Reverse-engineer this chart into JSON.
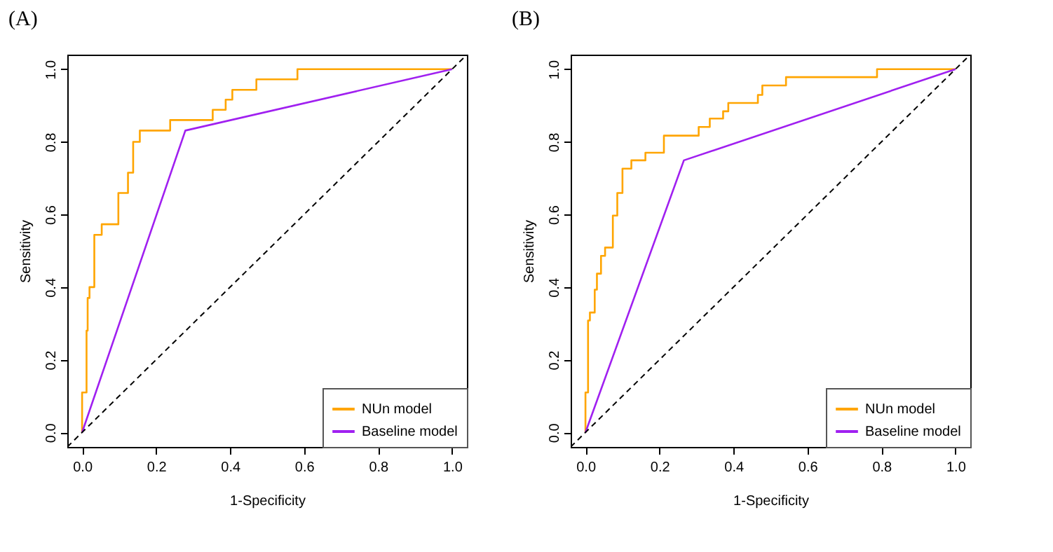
{
  "chart_data": [
    {
      "type": "line",
      "title": "(A)",
      "xlabel": "1-Specificity",
      "ylabel": "Sensitivity",
      "xlim": [
        -0.04,
        1.04
      ],
      "ylim": [
        -0.04,
        1.04
      ],
      "xticks": [
        {
          "value": 0,
          "label": "0.0"
        },
        {
          "value": 0.2,
          "label": "0.2"
        },
        {
          "value": 0.4,
          "label": "0.4"
        },
        {
          "value": 0.6,
          "label": "0.6"
        },
        {
          "value": 0.8,
          "label": "0.8"
        },
        {
          "value": 1,
          "label": "1.0"
        }
      ],
      "yticks": [
        {
          "value": 0,
          "label": "0.0"
        },
        {
          "value": 0.2,
          "label": "0.2"
        },
        {
          "value": 0.4,
          "label": "0.4"
        },
        {
          "value": 0.6,
          "label": "0.6"
        },
        {
          "value": 0.8,
          "label": "0.8"
        },
        {
          "value": 1,
          "label": "1.0"
        }
      ],
      "grid": false,
      "legend": "bottom right",
      "marker": "none",
      "series": [
        {
          "name": "NUn model",
          "color": "#ffa500",
          "x": [
            0,
            0,
            0.012,
            0.012,
            0.012,
            0.015,
            0.015,
            0.02,
            0.02,
            0.033,
            0.033,
            0.033,
            0.039,
            0.053,
            0.053,
            0.098,
            0.098,
            0.098,
            0.124,
            0.124,
            0.138,
            0.138,
            0.156,
            0.156,
            0.238,
            0.238,
            0.353,
            0.353,
            0.388,
            0.388,
            0.406,
            0.406,
            0.471,
            0.471,
            0.582,
            0.582,
            1
          ],
          "values": [
            0,
            0.11,
            0.11,
            0.2,
            0.28,
            0.28,
            0.37,
            0.37,
            0.4,
            0.4,
            0.485,
            0.544,
            0.544,
            0.544,
            0.573,
            0.573,
            0.628,
            0.659,
            0.659,
            0.715,
            0.715,
            0.8,
            0.8,
            0.831,
            0.831,
            0.86,
            0.86,
            0.888,
            0.888,
            0.916,
            0.916,
            0.943,
            0.943,
            0.972,
            0.972,
            1,
            1
          ]
        },
        {
          "name": "Baseline model",
          "color": "#a020f0",
          "x": [
            0,
            0.279,
            1
          ],
          "values": [
            0,
            0.831,
            1
          ]
        },
        {
          "color": "#000000",
          "line_style": "dashed",
          "x": [
            -0.04,
            1.04
          ],
          "values": [
            -0.04,
            1.04
          ]
        }
      ]
    },
    {
      "type": "line",
      "title": "(B)",
      "xlabel": "1-Specificity",
      "ylabel": "Sensitivity",
      "xlim": [
        -0.04,
        1.04
      ],
      "ylim": [
        -0.04,
        1.04
      ],
      "xticks": [
        {
          "value": 0,
          "label": "0.0"
        },
        {
          "value": 0.2,
          "label": "0.2"
        },
        {
          "value": 0.4,
          "label": "0.4"
        },
        {
          "value": 0.6,
          "label": "0.6"
        },
        {
          "value": 0.8,
          "label": "0.8"
        },
        {
          "value": 1,
          "label": "1.0"
        }
      ],
      "yticks": [
        {
          "value": 0,
          "label": "0.0"
        },
        {
          "value": 0.2,
          "label": "0.2"
        },
        {
          "value": 0.4,
          "label": "0.4"
        },
        {
          "value": 0.6,
          "label": "0.6"
        },
        {
          "value": 0.8,
          "label": "0.8"
        },
        {
          "value": 1,
          "label": "1.0"
        }
      ],
      "grid": false,
      "legend": "bottom right",
      "marker": "none",
      "series": [
        {
          "name": "NUn model",
          "color": "#ffa500",
          "x": [
            0,
            0,
            0.007,
            0.007,
            0.012,
            0.012,
            0.025,
            0.025,
            0.031,
            0.031,
            0.042,
            0.042,
            0.053,
            0.053,
            0.074,
            0.074,
            0.086,
            0.086,
            0.1,
            0.1,
            0.124,
            0.124,
            0.162,
            0.162,
            0.212,
            0.212,
            0.306,
            0.306,
            0.336,
            0.336,
            0.372,
            0.372,
            0.386,
            0.386,
            0.466,
            0.466,
            0.478,
            0.478,
            0.542,
            0.542,
            0.788,
            0.788,
            1
          ],
          "values": [
            0,
            0.11,
            0.11,
            0.308,
            0.308,
            0.33,
            0.33,
            0.393,
            0.393,
            0.437,
            0.437,
            0.486,
            0.486,
            0.509,
            0.509,
            0.597,
            0.597,
            0.659,
            0.659,
            0.726,
            0.726,
            0.749,
            0.749,
            0.77,
            0.77,
            0.817,
            0.817,
            0.841,
            0.841,
            0.864,
            0.864,
            0.884,
            0.884,
            0.907,
            0.907,
            0.929,
            0.929,
            0.955,
            0.955,
            0.978,
            0.978,
            1,
            1
          ]
        },
        {
          "name": "Baseline model",
          "color": "#a020f0",
          "x": [
            0,
            0.266,
            1
          ],
          "values": [
            0,
            0.749,
            1
          ]
        },
        {
          "color": "#000000",
          "line_style": "dashed",
          "x": [
            -0.04,
            1.04
          ],
          "values": [
            -0.04,
            1.04
          ]
        }
      ]
    }
  ]
}
